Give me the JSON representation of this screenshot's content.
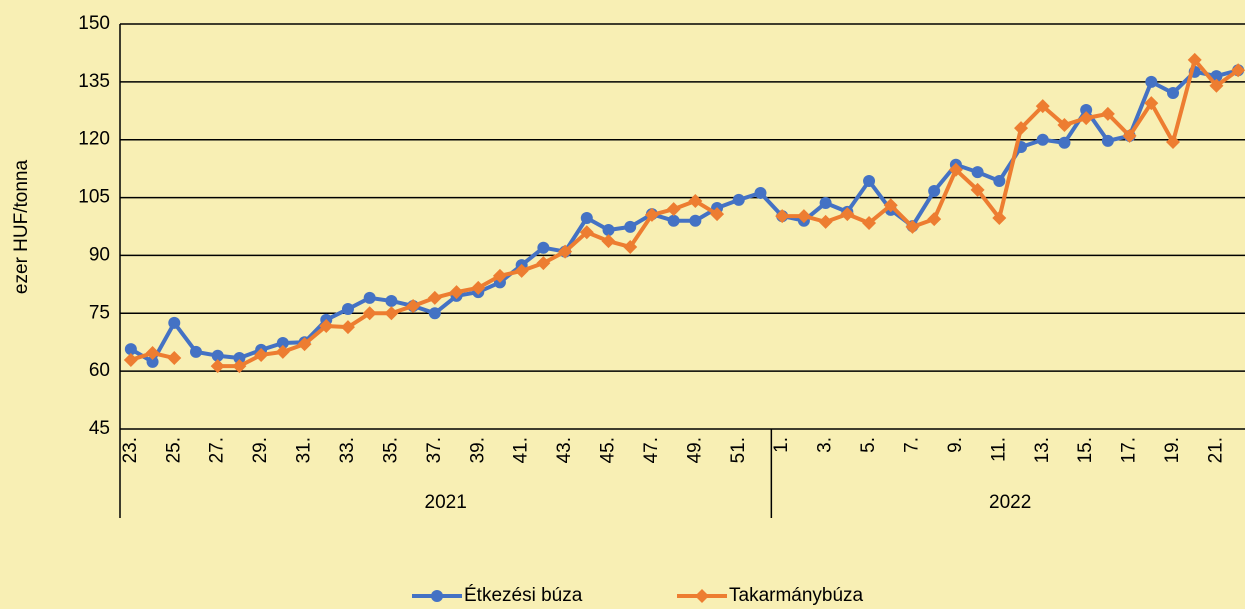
{
  "chart_data": {
    "type": "line",
    "y_label": "ezer HUF/tonna",
    "categories": [
      "23.",
      null,
      "25.",
      null,
      "27.",
      null,
      "29.",
      null,
      "31.",
      null,
      "33.",
      null,
      "35.",
      null,
      "37.",
      null,
      "39.",
      null,
      "41.",
      null,
      "43.",
      null,
      "45.",
      null,
      "47.",
      null,
      "49.",
      null,
      "51.",
      null,
      "1.",
      null,
      "3.",
      null,
      "5.",
      null,
      "7.",
      null,
      "9.",
      null,
      "11.",
      null,
      "13.",
      null,
      "15.",
      null,
      "17.",
      null,
      "19.",
      null,
      "21.",
      null
    ],
    "groups": [
      {
        "label": "2021",
        "count": 30
      },
      {
        "label": "2022",
        "count": 22
      }
    ],
    "series": [
      {
        "name": "Étkezési búza",
        "color": "#4472c4",
        "marker": "circle",
        "values": [
          65.7,
          62.4,
          72.5,
          65,
          64,
          63.4,
          65.5,
          67.3,
          67.5,
          73.3,
          76.1,
          79,
          78.2,
          76.9,
          75,
          79.5,
          80.5,
          83,
          87.5,
          92,
          91,
          99.7,
          96.6,
          97.4,
          100.7,
          99,
          99,
          102.3,
          104.4,
          106.2,
          100.2,
          99,
          103.6,
          101.3,
          109.3,
          101.8,
          97.6,
          106.7,
          113.5,
          111.6,
          109.3,
          118.1,
          120,
          119.2,
          127.7,
          119.7,
          121,
          135,
          132.1,
          137.6,
          136.5,
          138
        ]
      },
      {
        "name": "Takarmánybúza",
        "color": "#ed7d31",
        "marker": "diamond",
        "values": [
          62.9,
          64.7,
          63.4,
          null,
          61.3,
          61.3,
          64.2,
          65,
          67,
          71.7,
          71.4,
          75,
          75,
          76.9,
          79,
          80.5,
          81.6,
          84.7,
          86,
          88,
          91,
          96,
          93.7,
          92.2,
          100.5,
          102,
          104.1,
          100.7,
          null,
          null,
          100.2,
          100.2,
          98.7,
          100.7,
          98.4,
          103,
          97.4,
          99.4,
          112.2,
          107,
          99.7,
          123,
          128.7,
          123.8,
          125.6,
          126.7,
          121,
          129.5,
          119.4,
          140.7,
          134,
          138
        ]
      }
    ],
    "ylim": [
      45,
      150
    ],
    "yticks": [
      45,
      60,
      75,
      90,
      105,
      120,
      135,
      150
    ],
    "grid": true,
    "legend": "bottom"
  }
}
